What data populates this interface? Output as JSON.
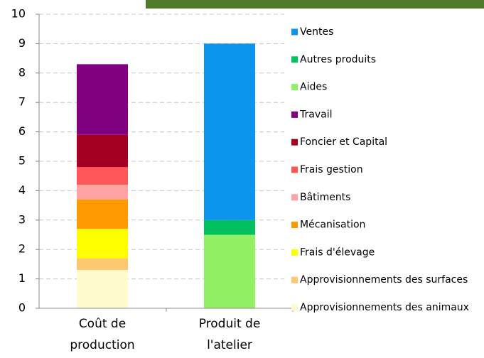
{
  "chart_data": {
    "type": "stacked_bar",
    "categories": [
      "Coût de production",
      "Produit de l'atelier"
    ],
    "series": [
      {
        "name": "Ventes",
        "color": "#0b95ef",
        "values": [
          0,
          6.0
        ]
      },
      {
        "name": "Autres produits",
        "color": "#00c060",
        "values": [
          0,
          0.5
        ]
      },
      {
        "name": "Aides",
        "color": "#92f064",
        "values": [
          0,
          2.5
        ]
      },
      {
        "name": "Travail",
        "color": "#800080",
        "values": [
          2.4,
          0
        ]
      },
      {
        "name": "Foncier et Capital",
        "color": "#a50021",
        "values": [
          1.1,
          0
        ]
      },
      {
        "name": "Frais gestion",
        "color": "#ff5757",
        "values": [
          0.6,
          0
        ]
      },
      {
        "name": "Bâtiments",
        "color": "#ffa3a3",
        "values": [
          0.5,
          0
        ]
      },
      {
        "name": "Mécanisation",
        "color": "#ff9900",
        "values": [
          1.0,
          0
        ]
      },
      {
        "name": "Frais d'élevage",
        "color": "#ffff00",
        "values": [
          1.0,
          0
        ]
      },
      {
        "name": "Approvisionnements des surfaces",
        "color": "#ffc870",
        "values": [
          0.4,
          0
        ]
      },
      {
        "name": "Approvisionnements des animaux",
        "color": "#fffbcf",
        "values": [
          1.3,
          0
        ]
      }
    ],
    "ylim": [
      0,
      10
    ],
    "yticks": [
      0,
      1,
      2,
      3,
      4,
      5,
      6,
      7,
      8,
      9,
      10
    ],
    "grid": true
  }
}
